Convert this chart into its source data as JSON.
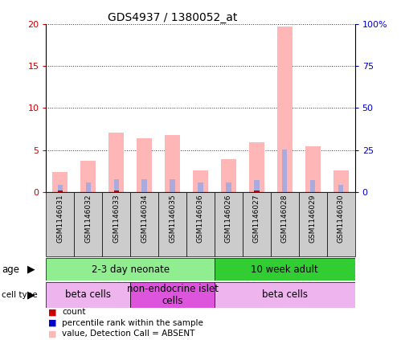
{
  "title": "GDS4937 / 1380052_at",
  "samples": [
    "GSM1146031",
    "GSM1146032",
    "GSM1146033",
    "GSM1146034",
    "GSM1146035",
    "GSM1146036",
    "GSM1146026",
    "GSM1146027",
    "GSM1146028",
    "GSM1146029",
    "GSM1146030"
  ],
  "pink_bars": [
    2.4,
    3.7,
    7.1,
    6.4,
    6.8,
    2.6,
    3.9,
    5.9,
    19.7,
    5.4,
    2.6
  ],
  "blue_bars": [
    0.9,
    1.1,
    1.5,
    1.5,
    1.5,
    1.1,
    1.1,
    1.4,
    5.1,
    1.4,
    0.9
  ],
  "red_bars": [
    0.18,
    0.0,
    0.18,
    0.0,
    0.0,
    0.0,
    0.0,
    0.18,
    0.0,
    0.0,
    0.0
  ],
  "ylim_left": [
    0,
    20
  ],
  "ylim_right": [
    0,
    100
  ],
  "yticks_left": [
    0,
    5,
    10,
    15,
    20
  ],
  "yticks_right": [
    0,
    25,
    50,
    75,
    100
  ],
  "ytick_labels_left": [
    "0",
    "5",
    "10",
    "15",
    "20"
  ],
  "ytick_labels_right": [
    "0",
    "25",
    "50",
    "75",
    "100%"
  ],
  "age_groups": [
    {
      "label": "2-3 day neonate",
      "start": 0,
      "end": 6,
      "color": "#90EE90"
    },
    {
      "label": "10 week adult",
      "start": 6,
      "end": 11,
      "color": "#32CD32"
    }
  ],
  "cell_type_groups": [
    {
      "label": "beta cells",
      "start": 0,
      "end": 3,
      "color": "#EEB4EE"
    },
    {
      "label": "non-endocrine islet\ncells",
      "start": 3,
      "end": 6,
      "color": "#DD55DD"
    },
    {
      "label": "beta cells",
      "start": 6,
      "end": 11,
      "color": "#EEB4EE"
    }
  ],
  "pink_color": "#FFB6B6",
  "blue_color": "#AAAADD",
  "red_color": "#CC0000",
  "dark_blue_color": "#0000CC",
  "label_area_color": "#CCCCCC",
  "background_color": "#FFFFFF",
  "grid_color": "#333333"
}
